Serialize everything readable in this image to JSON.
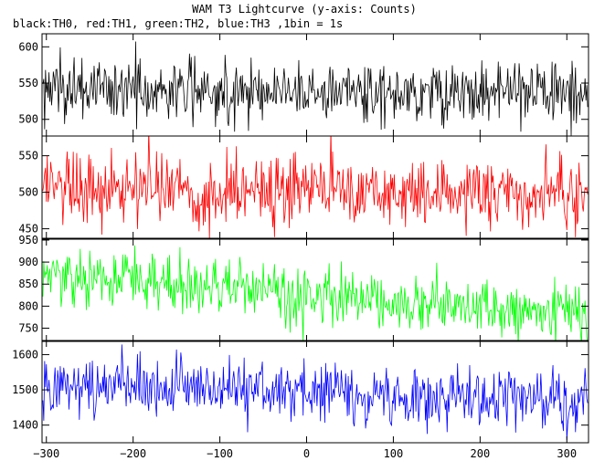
{
  "chart_data": {
    "type": "line",
    "title": "WAM T3 Lightcurve (y-axis: Counts)",
    "subtitle": "black:TH0, red:TH1, green:TH2, blue:TH3 ,1bin = 1s",
    "xlabel": "",
    "ylabel": "",
    "xlim": [
      -305,
      325
    ],
    "x_ticks": [
      -300,
      -200,
      -100,
      0,
      100,
      200,
      300
    ],
    "x_step": 1,
    "grid": false,
    "panels": [
      {
        "name": "TH0",
        "color": "#000000",
        "ylim": [
          477,
          618
        ],
        "y_ticks": [
          500,
          550,
          600
        ],
        "mean_start": 542,
        "mean_end": 536,
        "spread": 22
      },
      {
        "name": "TH1",
        "color": "#ff0000",
        "ylim": [
          437,
          577
        ],
        "y_ticks": [
          450,
          500,
          550
        ],
        "mean_start": 510,
        "mean_end": 495,
        "spread": 25
      },
      {
        "name": "TH2",
        "color": "#00ff00",
        "ylim": [
          720,
          952
        ],
        "y_ticks": [
          750,
          800,
          850,
          900,
          950
        ],
        "mean_start": 870,
        "mean_end": 780,
        "spread": 32
      },
      {
        "name": "TH3",
        "color": "#0000ff",
        "ylim": [
          1350,
          1640
        ],
        "y_ticks": [
          1400,
          1500,
          1600
        ],
        "mean_start": 1525,
        "mean_end": 1465,
        "spread": 42
      }
    ]
  }
}
